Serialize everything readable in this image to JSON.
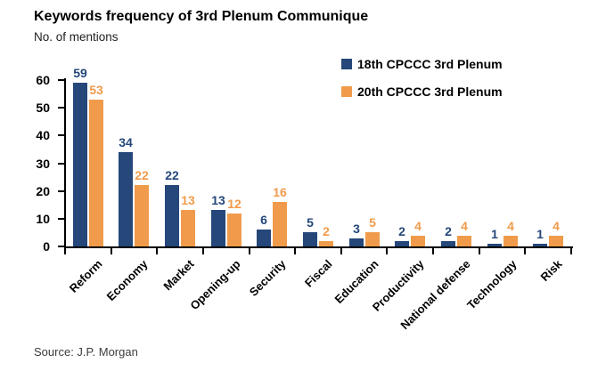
{
  "header": {
    "title": "Keywords frequency of 3rd Plenum Communique",
    "y_units": "No. of mentions"
  },
  "footer": {
    "source": "Source: J.P. Morgan"
  },
  "colors": {
    "series1": "#25477A",
    "series2": "#F09B4B",
    "axis": "#000000"
  },
  "chart_data": {
    "type": "bar",
    "title": "Keywords frequency of 3rd Plenum Communique",
    "ylabel": "No. of mentions",
    "categories": [
      "Reform",
      "Economy",
      "Market",
      "Opening-up",
      "Security",
      "Fiscal",
      "Education",
      "Productivity",
      "National defense",
      "Technology",
      "Risk"
    ],
    "series": [
      {
        "name": "18th CPCCC 3rd Plenum",
        "color": "#25477A",
        "values": [
          59,
          34,
          22,
          13,
          6,
          5,
          3,
          2,
          2,
          1,
          1
        ]
      },
      {
        "name": "20th CPCCC 3rd Plenum",
        "color": "#F09B4B",
        "values": [
          53,
          22,
          13,
          12,
          16,
          2,
          5,
          4,
          4,
          4,
          4
        ]
      }
    ],
    "ylim": [
      0,
      60
    ],
    "yticks": [
      0,
      10,
      20,
      30,
      40,
      50,
      60
    ],
    "grid": false,
    "legend_position": "top-right",
    "data_labels": true,
    "xlabel_rotation": -45
  }
}
